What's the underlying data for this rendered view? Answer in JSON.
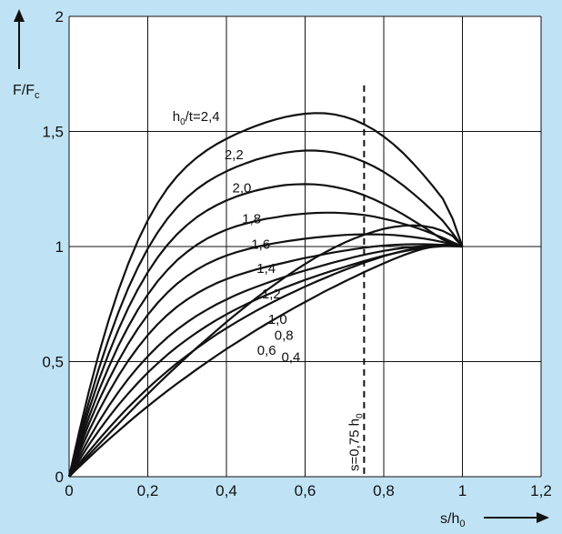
{
  "chart_data": {
    "type": "line",
    "xlabel": "s/h",
    "xlabel_subscript": "0",
    "ylabel": "F/F",
    "ylabel_subscript": "c",
    "xlim": [
      0,
      1.2
    ],
    "ylim": [
      0,
      2
    ],
    "x_ticks": [
      "0",
      "0,2",
      "0,4",
      "0,6",
      "0,8",
      "1",
      "1,2"
    ],
    "y_ticks": [
      "0",
      "0,5",
      "1",
      "1,5",
      "2"
    ],
    "grid": true,
    "colors": {
      "background": "#bfe3f5",
      "plot": "#ffffff",
      "ink": "#111111"
    },
    "x": [
      0,
      0.025,
      0.05,
      0.075,
      0.1,
      0.125,
      0.15,
      0.175,
      0.2,
      0.225,
      0.25,
      0.275,
      0.3,
      0.325,
      0.35,
      0.375,
      0.4,
      0.425,
      0.45,
      0.475,
      0.5,
      0.525,
      0.55,
      0.575,
      0.6,
      0.625,
      0.65,
      0.675,
      0.7,
      0.725,
      0.75,
      0.775,
      0.8,
      0.825,
      0.85,
      0.875,
      0.9,
      0.925,
      0.95,
      0.975,
      1.0
    ],
    "series": [
      {
        "name": "0,4",
        "values": [
          0,
          0.047,
          0.094,
          0.139,
          0.185,
          0.229,
          0.273,
          0.317,
          0.359,
          0.401,
          0.442,
          0.482,
          0.522,
          0.561,
          0.598,
          0.635,
          0.672,
          0.707,
          0.741,
          0.775,
          0.807,
          0.838,
          0.868,
          0.897,
          0.924,
          0.95,
          0.974,
          0.996,
          1.017,
          1.035,
          1.051,
          1.065,
          1.077,
          1.085,
          1.09,
          1.092,
          1.089,
          1.082,
          1.068,
          1.046,
          1.0
        ]
      },
      {
        "name": "0,6",
        "values": [
          0,
          0.042,
          0.082,
          0.122,
          0.161,
          0.198,
          0.235,
          0.271,
          0.306,
          0.34,
          0.373,
          0.405,
          0.436,
          0.467,
          0.497,
          0.526,
          0.555,
          0.582,
          0.609,
          0.636,
          0.662,
          0.687,
          0.712,
          0.736,
          0.759,
          0.782,
          0.805,
          0.826,
          0.848,
          0.868,
          0.889,
          0.908,
          0.927,
          0.945,
          0.962,
          0.977,
          0.99,
          1.0,
          1.007,
          1.009,
          1.0
        ]
      },
      {
        "name": "0,8",
        "values": [
          0,
          0.056,
          0.109,
          0.16,
          0.209,
          0.256,
          0.301,
          0.343,
          0.384,
          0.422,
          0.459,
          0.494,
          0.527,
          0.559,
          0.589,
          0.618,
          0.645,
          0.671,
          0.696,
          0.72,
          0.743,
          0.765,
          0.786,
          0.806,
          0.826,
          0.845,
          0.863,
          0.881,
          0.898,
          0.914,
          0.93,
          0.944,
          0.958,
          0.97,
          0.981,
          0.991,
          0.998,
          1.003,
          1.006,
          1.005,
          1.0
        ]
      },
      {
        "name": "1,0",
        "values": [
          0,
          0.07,
          0.137,
          0.199,
          0.257,
          0.311,
          0.361,
          0.408,
          0.452,
          0.492,
          0.53,
          0.565,
          0.597,
          0.627,
          0.655,
          0.681,
          0.705,
          0.728,
          0.749,
          0.769,
          0.788,
          0.806,
          0.823,
          0.839,
          0.855,
          0.87,
          0.884,
          0.898,
          0.911,
          0.924,
          0.937,
          0.949,
          0.96,
          0.97,
          0.979,
          0.987,
          0.993,
          0.998,
          1.001,
          1.002,
          1.0
        ]
      },
      {
        "name": "1,2",
        "values": [
          0,
          0.085,
          0.164,
          0.237,
          0.305,
          0.367,
          0.424,
          0.476,
          0.523,
          0.566,
          0.605,
          0.64,
          0.671,
          0.7,
          0.725,
          0.749,
          0.77,
          0.79,
          0.808,
          0.824,
          0.84,
          0.855,
          0.869,
          0.883,
          0.896,
          0.908,
          0.92,
          0.932,
          0.943,
          0.954,
          0.964,
          0.973,
          0.981,
          0.988,
          0.994,
          0.998,
          1.001,
          1.003,
          1.003,
          1.002,
          1.0
        ]
      },
      {
        "name": "1,4",
        "values": [
          0,
          0.102,
          0.197,
          0.284,
          0.364,
          0.437,
          0.503,
          0.562,
          0.615,
          0.662,
          0.703,
          0.739,
          0.77,
          0.797,
          0.82,
          0.841,
          0.858,
          0.874,
          0.887,
          0.9,
          0.911,
          0.921,
          0.931,
          0.941,
          0.95,
          0.958,
          0.967,
          0.975,
          0.982,
          0.989,
          0.995,
          1.0,
          1.004,
          1.007,
          1.009,
          1.01,
          1.01,
          1.009,
          1.007,
          1.004,
          1.0
        ]
      },
      {
        "name": "1,6",
        "values": [
          0,
          0.118,
          0.228,
          0.328,
          0.419,
          0.502,
          0.577,
          0.644,
          0.703,
          0.755,
          0.8,
          0.839,
          0.872,
          0.9,
          0.924,
          0.944,
          0.961,
          0.975,
          0.987,
          0.998,
          1.007,
          1.015,
          1.022,
          1.028,
          1.034,
          1.039,
          1.043,
          1.047,
          1.05,
          1.052,
          1.053,
          1.053,
          1.052,
          1.05,
          1.046,
          1.041,
          1.035,
          1.028,
          1.019,
          1.01,
          1.0
        ]
      },
      {
        "name": "1,8",
        "values": [
          0,
          0.133,
          0.257,
          0.371,
          0.474,
          0.568,
          0.651,
          0.726,
          0.791,
          0.849,
          0.898,
          0.941,
          0.977,
          1.008,
          1.034,
          1.055,
          1.073,
          1.088,
          1.1,
          1.111,
          1.12,
          1.127,
          1.134,
          1.139,
          1.143,
          1.146,
          1.147,
          1.147,
          1.145,
          1.142,
          1.137,
          1.13,
          1.121,
          1.111,
          1.099,
          1.086,
          1.071,
          1.055,
          1.038,
          1.019,
          1.0
        ]
      },
      {
        "name": "2,0",
        "values": [
          0,
          0.15,
          0.289,
          0.417,
          0.533,
          0.638,
          0.732,
          0.815,
          0.888,
          0.952,
          1.007,
          1.054,
          1.094,
          1.128,
          1.156,
          1.18,
          1.2,
          1.217,
          1.231,
          1.243,
          1.253,
          1.261,
          1.267,
          1.27,
          1.271,
          1.27,
          1.266,
          1.259,
          1.25,
          1.238,
          1.223,
          1.205,
          1.185,
          1.163,
          1.139,
          1.113,
          1.086,
          1.058,
          1.03,
          1.013,
          1.0
        ]
      },
      {
        "name": "2,2",
        "values": [
          0,
          0.167,
          0.323,
          0.466,
          0.596,
          0.713,
          0.818,
          0.91,
          0.991,
          1.061,
          1.121,
          1.171,
          1.214,
          1.25,
          1.28,
          1.305,
          1.327,
          1.346,
          1.362,
          1.377,
          1.389,
          1.4,
          1.408,
          1.414,
          1.417,
          1.417,
          1.414,
          1.408,
          1.398,
          1.385,
          1.368,
          1.348,
          1.324,
          1.296,
          1.265,
          1.23,
          1.193,
          1.153,
          1.112,
          1.058,
          1.0
        ]
      },
      {
        "name": "h0/t=2,4",
        "values": [
          0,
          0.19,
          0.368,
          0.53,
          0.677,
          0.808,
          0.924,
          1.026,
          1.114,
          1.189,
          1.253,
          1.306,
          1.35,
          1.387,
          1.418,
          1.445,
          1.468,
          1.489,
          1.507,
          1.524,
          1.539,
          1.552,
          1.563,
          1.571,
          1.577,
          1.58,
          1.579,
          1.574,
          1.564,
          1.55,
          1.531,
          1.507,
          1.478,
          1.444,
          1.405,
          1.361,
          1.313,
          1.262,
          1.208,
          1.121,
          1.0
        ]
      }
    ],
    "curve_labels": [
      {
        "text": "h",
        "sub": "0",
        "rest": "/t=2,4",
        "x": 0.263,
        "y": 1.545
      },
      {
        "text": "2,2",
        "x": 0.395,
        "y": 1.38
      },
      {
        "text": "2,0",
        "x": 0.415,
        "y": 1.235
      },
      {
        "text": "1,8",
        "x": 0.44,
        "y": 1.1
      },
      {
        "text": "1,6",
        "x": 0.463,
        "y": 0.99
      },
      {
        "text": "1,4",
        "x": 0.477,
        "y": 0.885
      },
      {
        "text": "1,2",
        "x": 0.49,
        "y": 0.775
      },
      {
        "text": "1,0",
        "x": 0.506,
        "y": 0.665
      },
      {
        "text": "0,8",
        "x": 0.522,
        "y": 0.595
      },
      {
        "text": "0,6",
        "x": 0.478,
        "y": 0.53
      },
      {
        "text": "0,4",
        "x": 0.54,
        "y": 0.5
      }
    ],
    "annotation": {
      "text": "s=0,75 h",
      "sub": "0",
      "x": 0.75,
      "y_top": 1.7
    }
  }
}
